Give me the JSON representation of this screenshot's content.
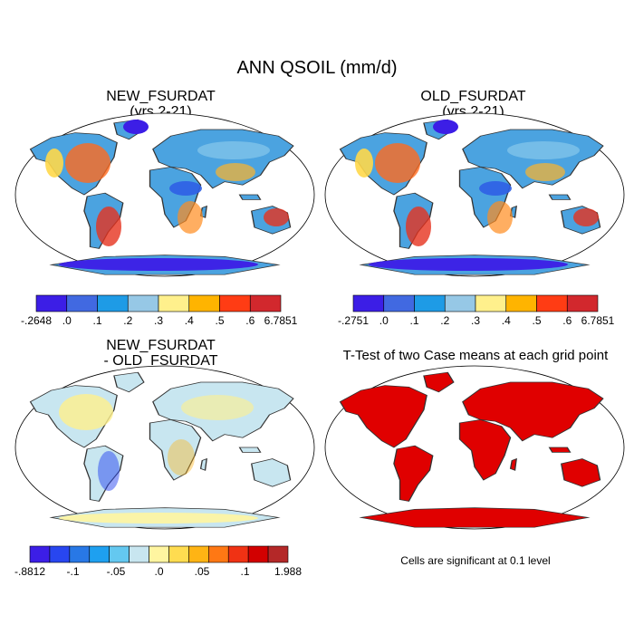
{
  "title": "ANN QSOIL (mm/d)",
  "panels": {
    "new": {
      "name": "NEW_FSURDAT",
      "subtitle": "(yrs 2-21)"
    },
    "old": {
      "name": "OLD_FSURDAT",
      "subtitle": "(yrs 2-21)"
    },
    "diff": {
      "line1": "NEW_FSURDAT",
      "line2": "- OLD_FSURDAT"
    },
    "ttest": {
      "title": "T-Test of two Case means at each grid point",
      "note": "Cells are significant at 0.1 level"
    }
  },
  "colorbars": {
    "new": {
      "colors": [
        "#3c1ee6",
        "#4169e1",
        "#1e9be6",
        "#96c8e6",
        "#fff08c",
        "#ffb400",
        "#ff3c14",
        "#d2282d"
      ],
      "labels": [
        "-.2648",
        ".0",
        ".1",
        ".2",
        ".3",
        ".4",
        ".5",
        ".6",
        "6.7851"
      ]
    },
    "old": {
      "colors": [
        "#3c1ee6",
        "#4169e1",
        "#1e9be6",
        "#96c8e6",
        "#fff08c",
        "#ffb400",
        "#ff3c14",
        "#d2282d"
      ],
      "labels": [
        "-.2751",
        ".0",
        ".1",
        ".2",
        ".3",
        ".4",
        ".5",
        ".6",
        "6.7851"
      ]
    },
    "diff": {
      "colors": [
        "#3c1ee6",
        "#2846f0",
        "#2878e6",
        "#1ea0f0",
        "#64c8f0",
        "#c8e6f0",
        "#fff5a0",
        "#ffdc50",
        "#ffb414",
        "#ff7814",
        "#f03214",
        "#d20000",
        "#b42828"
      ],
      "labels": [
        "-.8812",
        "-.1",
        "-.05",
        ".0",
        ".05",
        ".1",
        "1.988"
      ]
    }
  }
}
